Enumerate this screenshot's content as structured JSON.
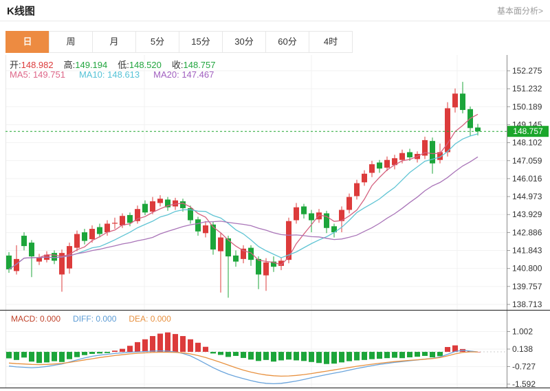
{
  "header": {
    "title": "K线图",
    "link": "基本面分析>"
  },
  "tabs": {
    "items": [
      {
        "label": "日",
        "active": true
      },
      {
        "label": "周",
        "active": false
      },
      {
        "label": "月",
        "active": false
      },
      {
        "label": "5分",
        "active": false
      },
      {
        "label": "15分",
        "active": false
      },
      {
        "label": "30分",
        "active": false
      },
      {
        "label": "60分",
        "active": false
      },
      {
        "label": "4时",
        "active": false
      }
    ]
  },
  "quote": {
    "items": [
      {
        "label": "开:",
        "value": "148.982",
        "color": "#dc3b3b"
      },
      {
        "label": "高:",
        "value": "149.194",
        "color": "#21a53e"
      },
      {
        "label": "低:",
        "value": "148.520",
        "color": "#21a53e"
      },
      {
        "label": "收:",
        "value": "148.757",
        "color": "#21a53e"
      }
    ]
  },
  "ma_legend": [
    {
      "text": "MA5: 149.751",
      "color": "#dd6688"
    },
    {
      "text": "MA10: 148.613",
      "color": "#55c2d6"
    },
    {
      "text": "MA20: 147.467",
      "color": "#a05fbf"
    }
  ],
  "indicator_legend": [
    {
      "text": "MACD: 0.000",
      "color": "#c0432b"
    },
    {
      "text": "DIFF: 0.000",
      "color": "#5b9bd5"
    },
    {
      "text": "DEA: 0.000",
      "color": "#e8913f"
    }
  ],
  "colors": {
    "up": "#dc3b3b",
    "down": "#1ca53a",
    "ma5": "#d4607e",
    "ma10": "#5fc4d4",
    "ma20": "#a974b8",
    "diff_line": "#6aa4dc",
    "dea_line": "#e8913f",
    "accent_tab": "#ed8b41",
    "price_tag_bg": "#1ba62b",
    "current_price_line": "#1fa52f"
  },
  "chart_data": {
    "type": "candlestick+macd",
    "price_axis": {
      "ticks": [
        152.275,
        151.232,
        150.189,
        149.145,
        148.102,
        147.059,
        146.016,
        144.973,
        143.929,
        142.886,
        141.843,
        140.8,
        139.757,
        138.713
      ],
      "current_price": 148.757
    },
    "macd_axis": {
      "ticks": [
        1.002,
        0.138,
        -0.727,
        -1.592
      ]
    },
    "ohlc_display": {
      "open": 148.982,
      "high": 149.194,
      "low": 148.52,
      "close": 148.757
    },
    "ma_values": {
      "ma5": 149.751,
      "ma10": 148.613,
      "ma20": 147.467
    },
    "ma_periods": [
      5,
      10,
      20
    ],
    "candles": [
      [
        141.55,
        141.75,
        140.55,
        140.75
      ],
      [
        140.65,
        142.15,
        140.45,
        141.35
      ],
      [
        142.7,
        142.9,
        141.85,
        142.1
      ],
      [
        142.3,
        142.45,
        140.3,
        141.5
      ],
      [
        141.2,
        141.65,
        141.0,
        141.45
      ],
      [
        141.3,
        141.8,
        141.15,
        141.6
      ],
      [
        141.7,
        141.85,
        141.05,
        141.25
      ],
      [
        140.45,
        141.9,
        139.45,
        141.7
      ],
      [
        140.8,
        142.3,
        140.5,
        142.1
      ],
      [
        142.0,
        143.0,
        141.8,
        142.8
      ],
      [
        142.9,
        143.1,
        142.2,
        142.4
      ],
      [
        142.5,
        143.3,
        142.3,
        143.1
      ],
      [
        143.2,
        143.4,
        142.6,
        142.8
      ],
      [
        142.9,
        143.6,
        142.7,
        143.4
      ],
      [
        143.4,
        143.75,
        143.1,
        143.45
      ],
      [
        143.3,
        144.0,
        143.15,
        143.85
      ],
      [
        143.9,
        144.05,
        143.25,
        143.45
      ],
      [
        143.55,
        144.45,
        143.4,
        144.25
      ],
      [
        144.55,
        144.75,
        143.9,
        144.05
      ],
      [
        144.1,
        144.95,
        143.95,
        144.7
      ],
      [
        144.6,
        145.05,
        144.4,
        144.85
      ],
      [
        144.8,
        144.95,
        144.15,
        144.35
      ],
      [
        144.4,
        144.9,
        144.2,
        144.75
      ],
      [
        144.7,
        144.85,
        144.1,
        144.3
      ],
      [
        144.3,
        144.45,
        143.4,
        143.6
      ],
      [
        143.65,
        143.8,
        142.7,
        142.95
      ],
      [
        142.85,
        143.55,
        142.6,
        143.3
      ],
      [
        143.35,
        143.5,
        141.6,
        141.9
      ],
      [
        141.8,
        142.85,
        139.4,
        142.6
      ],
      [
        142.55,
        142.7,
        139.1,
        141.5
      ],
      [
        141.55,
        141.85,
        140.9,
        141.2
      ],
      [
        141.35,
        142.15,
        141.1,
        141.95
      ],
      [
        142.0,
        142.15,
        140.95,
        141.3
      ],
      [
        141.35,
        141.5,
        139.6,
        140.45
      ],
      [
        140.4,
        141.4,
        139.5,
        141.15
      ],
      [
        141.2,
        141.5,
        140.6,
        140.9
      ],
      [
        140.95,
        141.45,
        140.7,
        141.25
      ],
      [
        141.3,
        143.75,
        141.1,
        143.55
      ],
      [
        143.6,
        144.6,
        143.4,
        144.35
      ],
      [
        144.4,
        144.55,
        143.7,
        143.95
      ],
      [
        144.0,
        144.2,
        142.9,
        143.6
      ],
      [
        143.65,
        144.25,
        143.45,
        144.05
      ],
      [
        144.0,
        144.15,
        142.85,
        143.15
      ],
      [
        143.25,
        143.4,
        142.6,
        142.9
      ],
      [
        143.55,
        144.4,
        142.9,
        144.2
      ],
      [
        144.2,
        145.15,
        144.0,
        144.95
      ],
      [
        145.0,
        145.95,
        144.8,
        145.75
      ],
      [
        145.8,
        146.5,
        145.6,
        146.3
      ],
      [
        146.35,
        147.05,
        146.1,
        146.85
      ],
      [
        146.95,
        147.1,
        146.35,
        146.6
      ],
      [
        146.65,
        147.3,
        146.45,
        147.1
      ],
      [
        146.8,
        147.4,
        146.55,
        147.2
      ],
      [
        147.1,
        147.7,
        146.9,
        147.5
      ],
      [
        147.55,
        147.75,
        147.05,
        147.25
      ],
      [
        147.15,
        147.6,
        146.95,
        147.45
      ],
      [
        147.35,
        148.45,
        147.15,
        148.25
      ],
      [
        148.2,
        148.4,
        146.3,
        146.9
      ],
      [
        147.1,
        148.05,
        146.9,
        147.55
      ],
      [
        147.55,
        150.45,
        147.3,
        150.1
      ],
      [
        150.15,
        151.25,
        149.85,
        150.95
      ],
      [
        150.95,
        151.63,
        149.8,
        150.0
      ],
      [
        150.05,
        150.2,
        148.5,
        148.95
      ],
      [
        148.982,
        149.194,
        148.52,
        148.757
      ]
    ],
    "macd": {
      "hist": [
        -0.32,
        -0.4,
        -0.28,
        -0.48,
        -0.55,
        -0.52,
        -0.46,
        -0.5,
        -0.36,
        -0.26,
        -0.16,
        -0.1,
        -0.08,
        -0.06,
        0.06,
        0.15,
        0.3,
        0.48,
        0.62,
        0.78,
        0.9,
        0.96,
        0.88,
        0.78,
        0.62,
        0.45,
        0.25,
        -0.08,
        -0.15,
        -0.25,
        -0.2,
        -0.3,
        -0.38,
        -0.45,
        -0.4,
        -0.48,
        -0.42,
        -0.38,
        -0.42,
        -0.45,
        -0.5,
        -0.55,
        -0.6,
        -0.58,
        -0.52,
        -0.46,
        -0.42,
        -0.4,
        -0.36,
        -0.34,
        -0.31,
        -0.29,
        -0.31,
        -0.27,
        -0.24,
        -0.2,
        -0.27,
        -0.21,
        0.24,
        0.32,
        0.14,
        0.04,
        0.0
      ],
      "diff": [
        -0.7,
        -0.74,
        -0.76,
        -0.78,
        -0.76,
        -0.72,
        -0.66,
        -0.6,
        -0.5,
        -0.4,
        -0.3,
        -0.22,
        -0.16,
        -0.12,
        -0.08,
        -0.05,
        -0.02,
        0.0,
        0.02,
        0.04,
        0.05,
        0.04,
        0.0,
        -0.08,
        -0.2,
        -0.38,
        -0.58,
        -0.78,
        -0.95,
        -1.1,
        -1.22,
        -1.32,
        -1.42,
        -1.5,
        -1.55,
        -1.57,
        -1.55,
        -1.5,
        -1.44,
        -1.36,
        -1.28,
        -1.2,
        -1.12,
        -1.05,
        -0.98,
        -0.9,
        -0.82,
        -0.75,
        -0.68,
        -0.62,
        -0.57,
        -0.52,
        -0.48,
        -0.44,
        -0.4,
        -0.36,
        -0.32,
        -0.25,
        -0.12,
        0.02,
        0.08,
        0.04,
        0.0
      ],
      "dea": [
        -0.55,
        -0.58,
        -0.6,
        -0.62,
        -0.63,
        -0.62,
        -0.6,
        -0.57,
        -0.52,
        -0.46,
        -0.4,
        -0.34,
        -0.28,
        -0.23,
        -0.18,
        -0.14,
        -0.1,
        -0.07,
        -0.05,
        -0.03,
        -0.02,
        -0.02,
        -0.03,
        -0.05,
        -0.1,
        -0.18,
        -0.28,
        -0.4,
        -0.52,
        -0.65,
        -0.78,
        -0.9,
        -1.0,
        -1.08,
        -1.14,
        -1.18,
        -1.2,
        -1.19,
        -1.16,
        -1.12,
        -1.07,
        -1.01,
        -0.95,
        -0.89,
        -0.83,
        -0.77,
        -0.71,
        -0.66,
        -0.61,
        -0.56,
        -0.52,
        -0.48,
        -0.45,
        -0.42,
        -0.39,
        -0.36,
        -0.33,
        -0.28,
        -0.2,
        -0.1,
        -0.03,
        0.0,
        0.0
      ]
    },
    "grid": {
      "vertical_x": [
        210,
        453,
        665
      ]
    }
  }
}
